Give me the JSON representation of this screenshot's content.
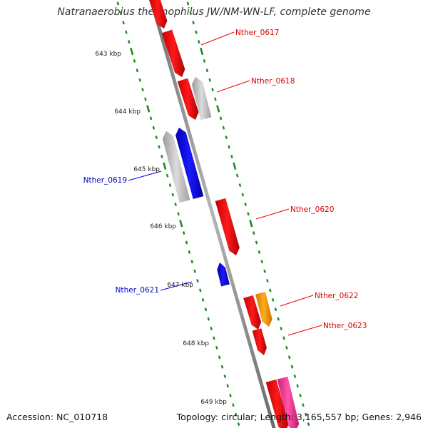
{
  "title": "Natranaerobius thermophilus JW/NM-WN-LF, complete genome",
  "accession": "Accession: NC_010718",
  "topology": "Topology: circular; Length: 3,165,557 bp; Genes: 2,946",
  "colors": {
    "backbone": "#8a8a8a",
    "tick": "#1a8c1a",
    "red": "#ee0000",
    "blue": "#0000ee",
    "gray": "#bdbdbd",
    "orange": "#ff9900",
    "pink": "#ff3399"
  },
  "scale_labels": [
    "643 kbp",
    "644 kbp",
    "645 kbp",
    "646 kbp",
    "647 kbp",
    "648 kbp",
    "649 kbp"
  ],
  "genes": [
    {
      "name": "Nther_0617",
      "color": "red"
    },
    {
      "name": "Nther_0618",
      "color": "red"
    },
    {
      "name": "Nther_0619",
      "color": "blue"
    },
    {
      "name": "Nther_0620",
      "color": "red"
    },
    {
      "name": "Nther_0621",
      "color": "blue"
    },
    {
      "name": "Nther_0622",
      "color": "red"
    },
    {
      "name": "Nther_0623",
      "color": "red"
    }
  ]
}
